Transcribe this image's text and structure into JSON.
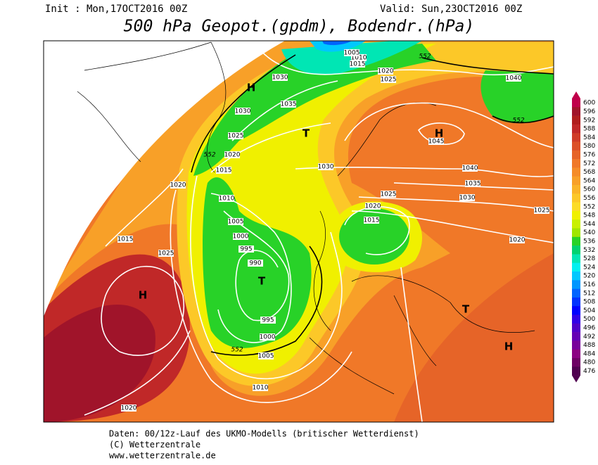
{
  "header": {
    "init": "Init : Mon,17OCT2016 00Z",
    "valid": "Valid: Sun,23OCT2016 00Z",
    "title": "500 hPa Geopot.(gpdm), Bodendr.(hPa)"
  },
  "legend": {
    "items": [
      {
        "value": 600,
        "color": "#c0004a"
      },
      {
        "value": 596,
        "color": "#a0142a"
      },
      {
        "value": 592,
        "color": "#b01e1e"
      },
      {
        "value": 588,
        "color": "#c02828"
      },
      {
        "value": 584,
        "color": "#d03c28"
      },
      {
        "value": 580,
        "color": "#dc5028"
      },
      {
        "value": 576,
        "color": "#e66428"
      },
      {
        "value": 572,
        "color": "#f07828"
      },
      {
        "value": 568,
        "color": "#f58c28"
      },
      {
        "value": 564,
        "color": "#f8a028"
      },
      {
        "value": 560,
        "color": "#fab428"
      },
      {
        "value": 556,
        "color": "#fcc828"
      },
      {
        "value": 552,
        "color": "#fcdc28"
      },
      {
        "value": 548,
        "color": "#f0f000"
      },
      {
        "value": 544,
        "color": "#c8f000"
      },
      {
        "value": 540,
        "color": "#a0e600"
      },
      {
        "value": 536,
        "color": "#28d228"
      },
      {
        "value": 532,
        "color": "#00d270"
      },
      {
        "value": 528,
        "color": "#00e6b4"
      },
      {
        "value": 524,
        "color": "#00f0f0"
      },
      {
        "value": 520,
        "color": "#00c8ff"
      },
      {
        "value": 516,
        "color": "#0096ff"
      },
      {
        "value": 512,
        "color": "#0064ff"
      },
      {
        "value": 508,
        "color": "#0032ff"
      },
      {
        "value": 504,
        "color": "#0000ff"
      },
      {
        "value": 500,
        "color": "#3200e6"
      },
      {
        "value": 496,
        "color": "#5000c8"
      },
      {
        "value": 492,
        "color": "#6400b4"
      },
      {
        "value": 488,
        "color": "#78009b"
      },
      {
        "value": 484,
        "color": "#8c0082"
      },
      {
        "value": 480,
        "color": "#6e0064"
      },
      {
        "value": 476,
        "color": "#500050"
      }
    ]
  },
  "map": {
    "isobar_labels": [
      "1030",
      "1030",
      "1035",
      "1025",
      "1020",
      "1015",
      "1020",
      "1010",
      "1005",
      "1000",
      "995",
      "990",
      "995",
      "1000",
      "1005",
      "1010",
      "1020",
      "1025",
      "1015",
      "1030",
      "1025",
      "1020",
      "1015",
      "1040",
      "1035",
      "1030",
      "1025",
      "1020",
      "1045",
      "1040",
      "1020",
      "1025",
      "1015",
      "1010",
      "1005"
    ],
    "height_labels": [
      "552",
      "552",
      "552",
      "552"
    ],
    "centers": [
      "H",
      "T",
      "H",
      "T",
      "H",
      "T",
      "H"
    ]
  },
  "footer": {
    "lines": [
      "Daten: 00/12z-Lauf des UKMO-Modells (britischer Wetterdienst)",
      "(C) Wetterzentrale",
      "www.wetterzentrale.de"
    ]
  }
}
